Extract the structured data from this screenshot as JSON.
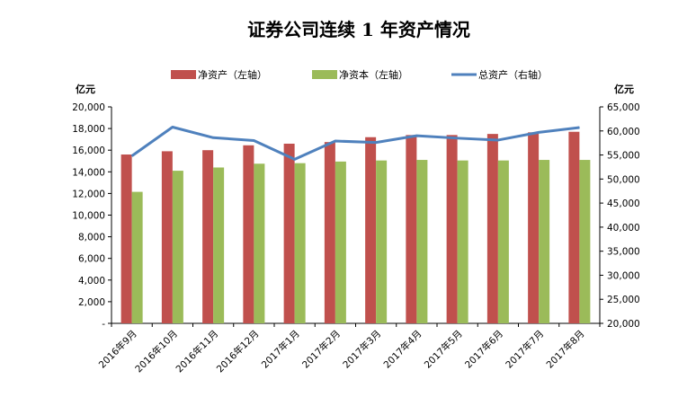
{
  "chart_data": {
    "type": "bar",
    "title": "证券公司连续 1 年资产情况",
    "left_unit": "亿元",
    "right_unit": "亿元",
    "categories": [
      "2016年9月",
      "2016年10月",
      "2016年11月",
      "2016年12月",
      "2017年1月",
      "2017年2月",
      "2017年3月",
      "2017年4月",
      "2017年5月",
      "2017年6月",
      "2017年7月",
      "2017年8月"
    ],
    "series": [
      {
        "name": "净资产（左轴）",
        "type": "bar",
        "axis": "left",
        "color": "#c0504d",
        "values": [
          15600,
          15900,
          16000,
          16450,
          16600,
          16750,
          17200,
          17400,
          17400,
          17500,
          17650,
          17700
        ]
      },
      {
        "name": "净资本（左轴）",
        "type": "bar",
        "axis": "left",
        "color": "#9bbb59",
        "values": [
          12150,
          14100,
          14400,
          14750,
          14800,
          14950,
          15050,
          15100,
          15050,
          15050,
          15100,
          15100
        ]
      },
      {
        "name": "总资产（右轴）",
        "type": "line",
        "axis": "right",
        "color": "#4f81bd",
        "values": [
          54800,
          60800,
          58600,
          58000,
          54100,
          57900,
          57600,
          59000,
          58500,
          58100,
          59700,
          60700
        ]
      }
    ],
    "y_left": {
      "min": 0,
      "max": 20000,
      "step": 2000,
      "tick_labels": [
        "-",
        "2,000",
        "4,000",
        "6,000",
        "8,000",
        "10,000",
        "12,000",
        "14,000",
        "16,000",
        "18,000",
        "20,000"
      ]
    },
    "y_right": {
      "min": 20000,
      "max": 65000,
      "step": 5000,
      "tick_labels": [
        "20,000",
        "25,000",
        "30,000",
        "35,000",
        "40,000",
        "45,000",
        "50,000",
        "55,000",
        "60,000",
        "65,000"
      ]
    },
    "grid": false,
    "legend_position": "top"
  }
}
